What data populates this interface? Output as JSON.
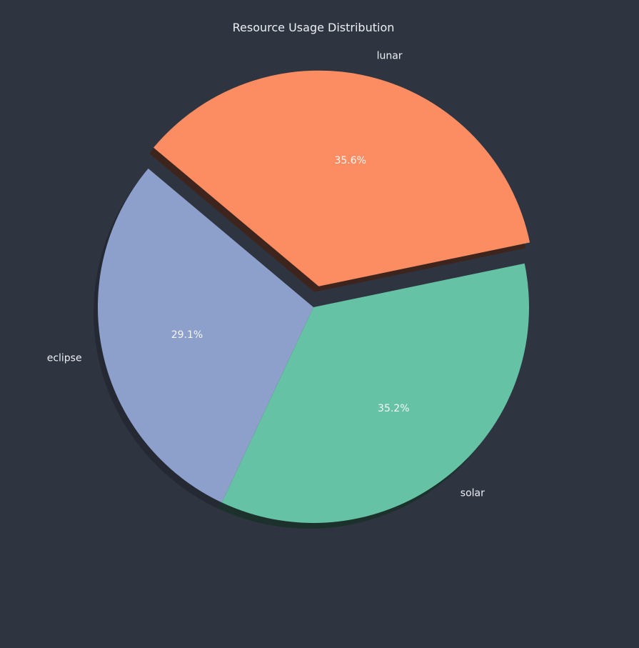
{
  "chart_data": {
    "type": "pie",
    "title": "Resource Usage Distribution",
    "start_angle_deg": 140,
    "direction": "counterclockwise",
    "shadow": true,
    "slices": [
      {
        "label": "eclipse",
        "value": 29.1,
        "pct_label": "29.1%",
        "color": "#8da0cb",
        "explode": 0
      },
      {
        "label": "solar",
        "value": 35.2,
        "pct_label": "35.2%",
        "color": "#66c2a5",
        "explode": 0
      },
      {
        "label": "lunar",
        "value": 35.6,
        "pct_label": "35.6%",
        "color": "#fc8d62",
        "explode": 0.1
      }
    ]
  }
}
